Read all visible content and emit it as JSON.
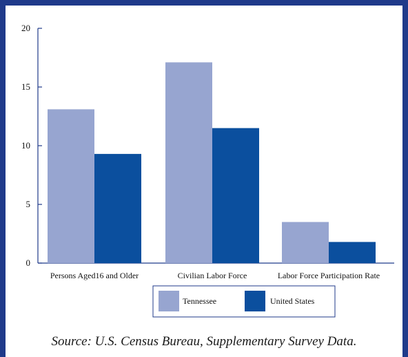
{
  "chart_data": {
    "type": "bar",
    "categories": [
      "Persons Aged16 and Older",
      "Civilian Labor Force",
      "Labor Force Participation Rate"
    ],
    "series": [
      {
        "name": "Tennessee",
        "color": "#97a5d0",
        "values": [
          13.1,
          17.1,
          3.5
        ]
      },
      {
        "name": "United States",
        "color": "#0b4f9e",
        "values": [
          9.3,
          11.5,
          1.8
        ]
      }
    ],
    "ylim": [
      0,
      20
    ],
    "yticks": [
      0,
      5,
      10,
      15,
      20
    ],
    "grid": false,
    "legend_position": "bottom-center"
  },
  "source_text": "Source: U.S. Census Bureau, Supplementary Survey Data.",
  "colors": {
    "frame": "#1f3a8a",
    "axis": "#1f3a8a"
  }
}
